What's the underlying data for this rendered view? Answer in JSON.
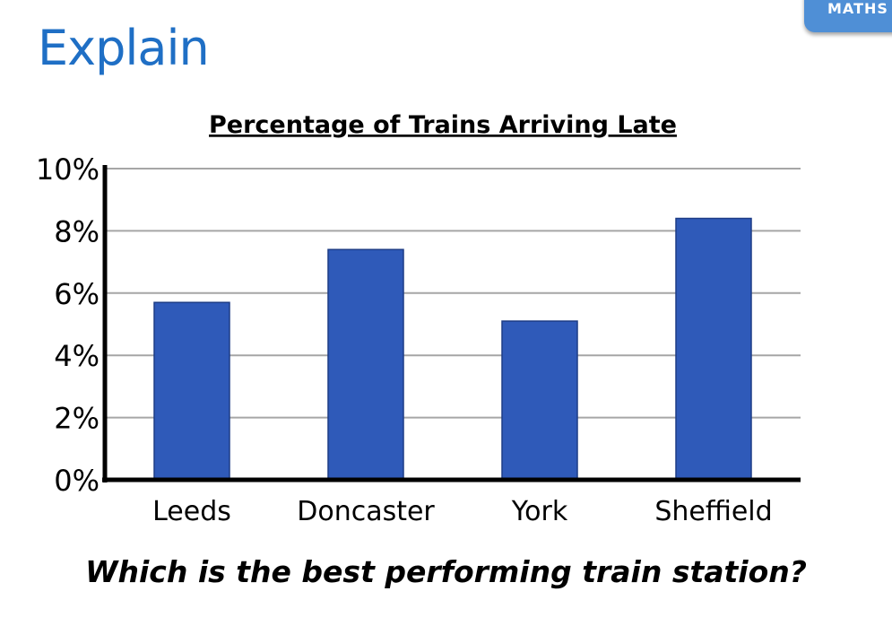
{
  "badge": {
    "label": "MATHS"
  },
  "heading": "Explain",
  "question": "Which is the best performing train station?",
  "colors": {
    "bar": "#2f5ab9",
    "bar_edge": "#1d3c86",
    "heading": "#1f6fc5",
    "badge": "#4f8fd6",
    "grid": "#a6a6a6",
    "axis": "#000000"
  },
  "chart_data": {
    "type": "bar",
    "title": "Percentage of Trains Arriving Late",
    "categories": [
      "Leeds",
      "Doncaster",
      "York",
      "Sheffield"
    ],
    "values": [
      5.7,
      7.4,
      5.1,
      8.4
    ],
    "ylim": [
      0,
      10
    ],
    "yticks": [
      0,
      2,
      4,
      6,
      8,
      10
    ],
    "ytick_labels": [
      "0%",
      "2%",
      "4%",
      "6%",
      "8%",
      "10%"
    ],
    "grid": true,
    "xlabel": "",
    "ylabel": ""
  }
}
